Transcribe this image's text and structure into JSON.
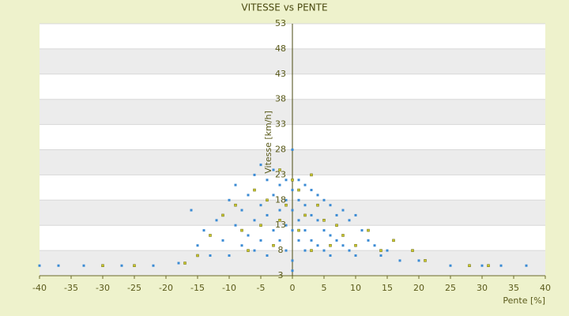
{
  "chart_data": {
    "type": "scatter",
    "title": "VITESSE vs PENTE",
    "x_label": "Pente [%]",
    "y_label": "Vitesse [km/h]",
    "xlim": [
      -40,
      40
    ],
    "xticks": [
      -40,
      -35,
      -30,
      -25,
      -20,
      -15,
      -10,
      -5,
      0,
      5,
      10,
      15,
      20,
      25,
      30,
      35,
      40
    ],
    "ylim": [
      3,
      53
    ],
    "yticks": [
      3,
      8,
      13,
      18,
      23,
      28,
      33,
      38,
      43,
      48,
      53
    ],
    "grid": true,
    "series": [
      {
        "color": "#3b8bd4",
        "x": [
          -40,
          -37,
          -33,
          -27,
          -22,
          -18,
          -16,
          -15,
          -14,
          -13,
          -12,
          -11,
          -10,
          -10,
          -9,
          -9,
          -8,
          -8,
          -7,
          -7,
          -6,
          -6,
          -6,
          -5,
          -5,
          -5,
          -4,
          -4,
          -4,
          -3,
          -3,
          -3,
          -2,
          -2,
          -2,
          -1,
          -1,
          -1,
          -1,
          0,
          0,
          0,
          0,
          0,
          0,
          1,
          1,
          1,
          1,
          2,
          2,
          2,
          2,
          3,
          3,
          3,
          4,
          4,
          4,
          5,
          5,
          5,
          6,
          6,
          6,
          7,
          7,
          8,
          8,
          9,
          9,
          10,
          10,
          11,
          12,
          13,
          14,
          15,
          17,
          20,
          25,
          30,
          33,
          37
        ],
        "values": [
          5,
          5,
          5,
          5,
          5,
          5.5,
          16,
          9,
          12,
          7,
          14,
          10,
          18,
          7,
          21,
          13,
          16,
          9,
          19,
          11,
          23,
          14,
          8,
          25,
          17,
          10,
          22,
          15,
          7,
          24,
          19,
          12,
          21,
          16,
          10,
          22,
          18,
          13,
          8,
          28,
          20,
          16,
          12,
          6,
          4,
          22,
          18,
          14,
          10,
          21,
          17,
          12,
          8,
          20,
          15,
          10,
          19,
          14,
          9,
          18,
          12,
          8,
          17,
          11,
          7,
          15,
          10,
          16,
          9,
          14,
          8,
          15,
          7,
          12,
          10,
          9,
          7,
          8,
          6,
          6,
          5,
          5,
          5,
          5
        ]
      },
      {
        "color": "#c9c62a",
        "x": [
          -30,
          -25,
          -17,
          -15,
          -13,
          -11,
          -9,
          -8,
          -7,
          -6,
          -5,
          -4,
          -3,
          -2,
          -2,
          -1,
          0,
          1,
          1,
          2,
          3,
          3,
          4,
          5,
          6,
          7,
          8,
          10,
          12,
          14,
          16,
          19,
          21,
          28,
          31
        ],
        "values": [
          5,
          5,
          5.5,
          7,
          11,
          15,
          17,
          12,
          8,
          20,
          13,
          18,
          9,
          24,
          14,
          17,
          22,
          20,
          12,
          15,
          23,
          8,
          17,
          14,
          9,
          13,
          11,
          9,
          12,
          8,
          10,
          8,
          6,
          5,
          5
        ]
      }
    ]
  }
}
